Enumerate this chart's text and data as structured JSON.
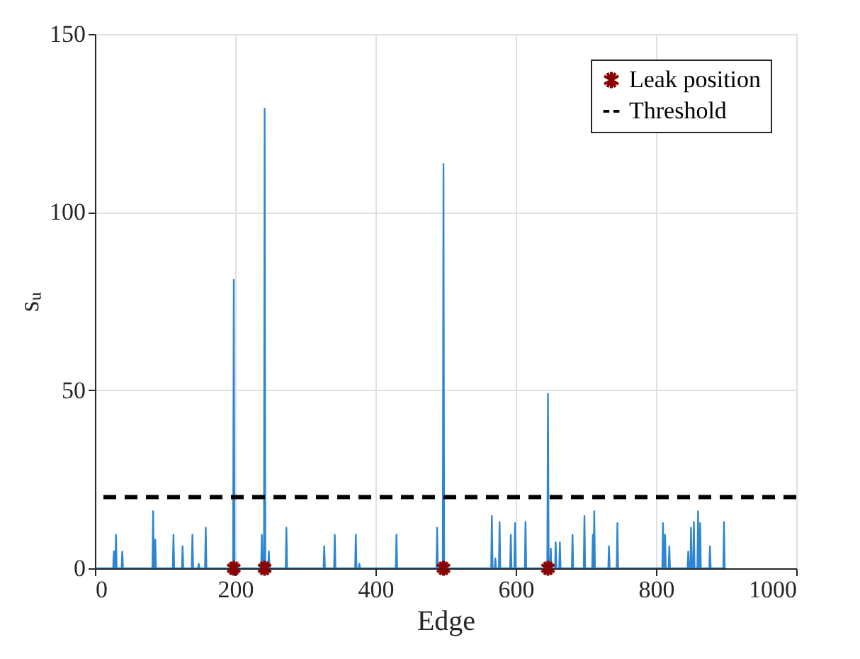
{
  "chart_data": {
    "type": "line",
    "xlabel": "Edge",
    "ylabel": "sᵤ",
    "xlim": [
      0,
      1000
    ],
    "xticks": [
      0,
      200,
      400,
      600,
      800,
      1000
    ],
    "ylim": [
      0,
      150
    ],
    "yticks": [
      0,
      50,
      100,
      150
    ],
    "grid": true,
    "legend": "top right",
    "series": [
      {
        "color": "#2f86d0",
        "marker": "none",
        "line_style": "solid",
        "x": [
          1,
          26,
          27,
          28,
          29,
          30,
          31,
          38,
          39,
          40,
          82,
          83,
          84,
          85,
          86,
          87,
          111,
          112,
          113,
          124,
          125,
          126,
          138,
          139,
          140,
          147,
          148,
          149,
          157,
          158,
          159,
          197,
          198,
          199,
          237,
          238,
          239,
          241,
          242,
          243,
          247,
          248,
          249,
          272,
          273,
          274,
          326,
          327,
          328,
          341,
          342,
          343,
          371,
          372,
          373,
          376,
          377,
          378,
          429,
          430,
          431,
          487,
          488,
          489,
          496,
          497,
          498,
          565,
          566,
          567,
          570,
          571,
          572,
          576,
          577,
          578,
          592,
          593,
          594,
          598,
          599,
          600,
          613,
          614,
          615,
          645,
          646,
          647,
          649,
          650,
          651,
          656,
          657,
          658,
          662,
          663,
          664,
          680,
          681,
          682,
          697,
          698,
          699,
          709,
          710,
          711,
          712,
          713,
          732,
          733,
          734,
          744,
          745,
          746,
          809,
          810,
          811,
          812,
          813,
          814,
          818,
          819,
          820,
          845,
          846,
          847,
          849,
          850,
          851,
          853,
          854,
          855,
          859,
          860,
          861,
          862,
          863,
          864,
          876,
          877,
          878,
          896,
          897,
          898,
          900
        ],
        "values": [
          0,
          0,
          4.8,
          0,
          0,
          9.4,
          0,
          0,
          4.7,
          0,
          0,
          16,
          0,
          0,
          8,
          0,
          0,
          9.4,
          0,
          0,
          6.2,
          0,
          0,
          9.4,
          0,
          0,
          1.3,
          0,
          0,
          11.4,
          0,
          0,
          81,
          0,
          0,
          9.4,
          0,
          0,
          129,
          0,
          0,
          4.8,
          0,
          0,
          11.4,
          0,
          0,
          6.2,
          0,
          0,
          9.4,
          0,
          0,
          9.4,
          0,
          0,
          1.3,
          0,
          0,
          9.4,
          0,
          0,
          11.4,
          0,
          0,
          113.5,
          0,
          0,
          14.7,
          0,
          0,
          2.8,
          0,
          0,
          13,
          0,
          0,
          9.4,
          0,
          0,
          12.7,
          0,
          0,
          13,
          0,
          0,
          49,
          0,
          0,
          5.6,
          0,
          0,
          7.3,
          0,
          0,
          7.3,
          0,
          0,
          9.4,
          0,
          0,
          14.7,
          0,
          0,
          9.4,
          0,
          16,
          0,
          0,
          6.2,
          0,
          0,
          12.7,
          0,
          0,
          12.7,
          0,
          0,
          9.4,
          0,
          0,
          6.2,
          0,
          0,
          4.7,
          0,
          0,
          11.4,
          0,
          0,
          13,
          0,
          0,
          16,
          0,
          0,
          12.7,
          0,
          0,
          6.2,
          0,
          0,
          13,
          0,
          0
        ]
      },
      {
        "type": "scatter",
        "name": "Leak position",
        "color": "#8b0000",
        "marker": "cross",
        "x": [
          198,
          242,
          497,
          646
        ],
        "values": [
          0,
          0,
          0,
          0
        ]
      }
    ],
    "ref_lines": [
      {
        "axis": "y",
        "value": 20,
        "label": "Threshold",
        "color": "#000000",
        "line_style": "dashed"
      }
    ]
  }
}
